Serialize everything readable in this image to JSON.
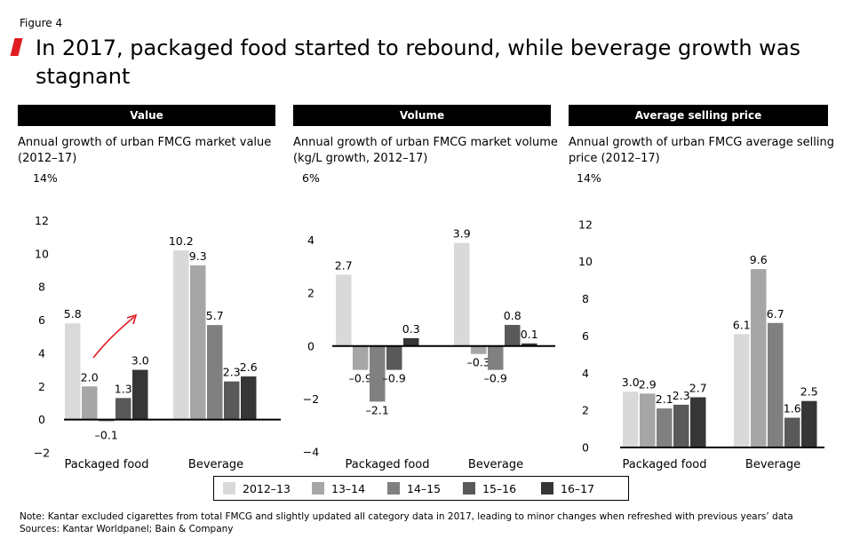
{
  "figure_label": "Figure 4",
  "title": "In 2017, packaged food started to rebound, while beverage growth was stagnant",
  "series_colors": [
    "#d9d9d9",
    "#a6a6a6",
    "#808080",
    "#595959",
    "#363636"
  ],
  "accent_color": "#e11b22",
  "legend": [
    "2012–13",
    "13–14",
    "14–15",
    "15–16",
    "16–17"
  ],
  "footer": {
    "note": "Note: Kantar excluded cigarettes from total FMCG and slightly updated all category data in 2017, leading to minor changes when refreshed with previous years’ data",
    "sources": "Sources: Kantar Worldpanel; Bain & Company"
  },
  "chart_data": [
    {
      "type": "bar",
      "header": "Value",
      "title": "Annual growth of urban FMCG market value (2012–17)",
      "unit_label": "14%",
      "ylim": [
        -2,
        14
      ],
      "yticks": [
        "−2",
        "0",
        "2",
        "4",
        "6",
        "8",
        "10",
        "12"
      ],
      "categories": [
        "Packaged food",
        "Beverage"
      ],
      "series": [
        {
          "name": "2012–13",
          "values": [
            5.8,
            10.2
          ],
          "labels": [
            "5.8",
            "10.2"
          ]
        },
        {
          "name": "13–14",
          "values": [
            2.0,
            9.3
          ],
          "labels": [
            "2.0",
            "9.3"
          ]
        },
        {
          "name": "14–15",
          "values": [
            -0.1,
            5.7
          ],
          "labels": [
            "–0.1",
            "5.7"
          ]
        },
        {
          "name": "15–16",
          "values": [
            1.3,
            2.3
          ],
          "labels": [
            "1.3",
            "2.3"
          ]
        },
        {
          "name": "16–17",
          "values": [
            3.0,
            2.6
          ],
          "labels": [
            "3.0",
            "2.6"
          ]
        }
      ],
      "annotation": "rebound-arrow"
    },
    {
      "type": "bar",
      "header": "Volume",
      "title": "Annual growth of urban FMCG market volume (kg/L growth, 2012–17)",
      "unit_label": "6%",
      "ylim": [
        -4,
        6
      ],
      "yticks": [
        "−4",
        "−2",
        "0",
        "2",
        "4"
      ],
      "categories": [
        "Packaged food",
        "Beverage"
      ],
      "series": [
        {
          "name": "2012–13",
          "values": [
            2.7,
            3.9
          ],
          "labels": [
            "2.7",
            "3.9"
          ]
        },
        {
          "name": "13–14",
          "values": [
            -0.9,
            -0.3
          ],
          "labels": [
            "–0.9",
            "–0.3"
          ]
        },
        {
          "name": "14–15",
          "values": [
            -2.1,
            -0.9
          ],
          "labels": [
            "–2.1",
            "–0.9"
          ]
        },
        {
          "name": "15–16",
          "values": [
            -0.9,
            0.8
          ],
          "labels": [
            "–0.9",
            "0.8"
          ]
        },
        {
          "name": "16–17",
          "values": [
            0.3,
            0.1
          ],
          "labels": [
            "0.3",
            "0.1"
          ]
        }
      ]
    },
    {
      "type": "bar",
      "header": "Average selling price",
      "title": "Annual growth of urban FMCG average selling price (2012–17)",
      "unit_label": "14%",
      "ylim": [
        0,
        14
      ],
      "yticks": [
        "0",
        "2",
        "4",
        "6",
        "8",
        "10",
        "12"
      ],
      "categories": [
        "Packaged food",
        "Beverage"
      ],
      "series": [
        {
          "name": "2012–13",
          "values": [
            3.0,
            6.1
          ],
          "labels": [
            "3.0",
            "6.1"
          ]
        },
        {
          "name": "13–14",
          "values": [
            2.9,
            9.6
          ],
          "labels": [
            "2.9",
            "9.6"
          ]
        },
        {
          "name": "14–15",
          "values": [
            2.1,
            6.7
          ],
          "labels": [
            "2.1",
            "6.7"
          ]
        },
        {
          "name": "15–16",
          "values": [
            2.3,
            1.6
          ],
          "labels": [
            "2.3",
            "1.6"
          ]
        },
        {
          "name": "16–17",
          "values": [
            2.7,
            2.5
          ],
          "labels": [
            "2.7",
            "2.5"
          ]
        }
      ]
    }
  ]
}
